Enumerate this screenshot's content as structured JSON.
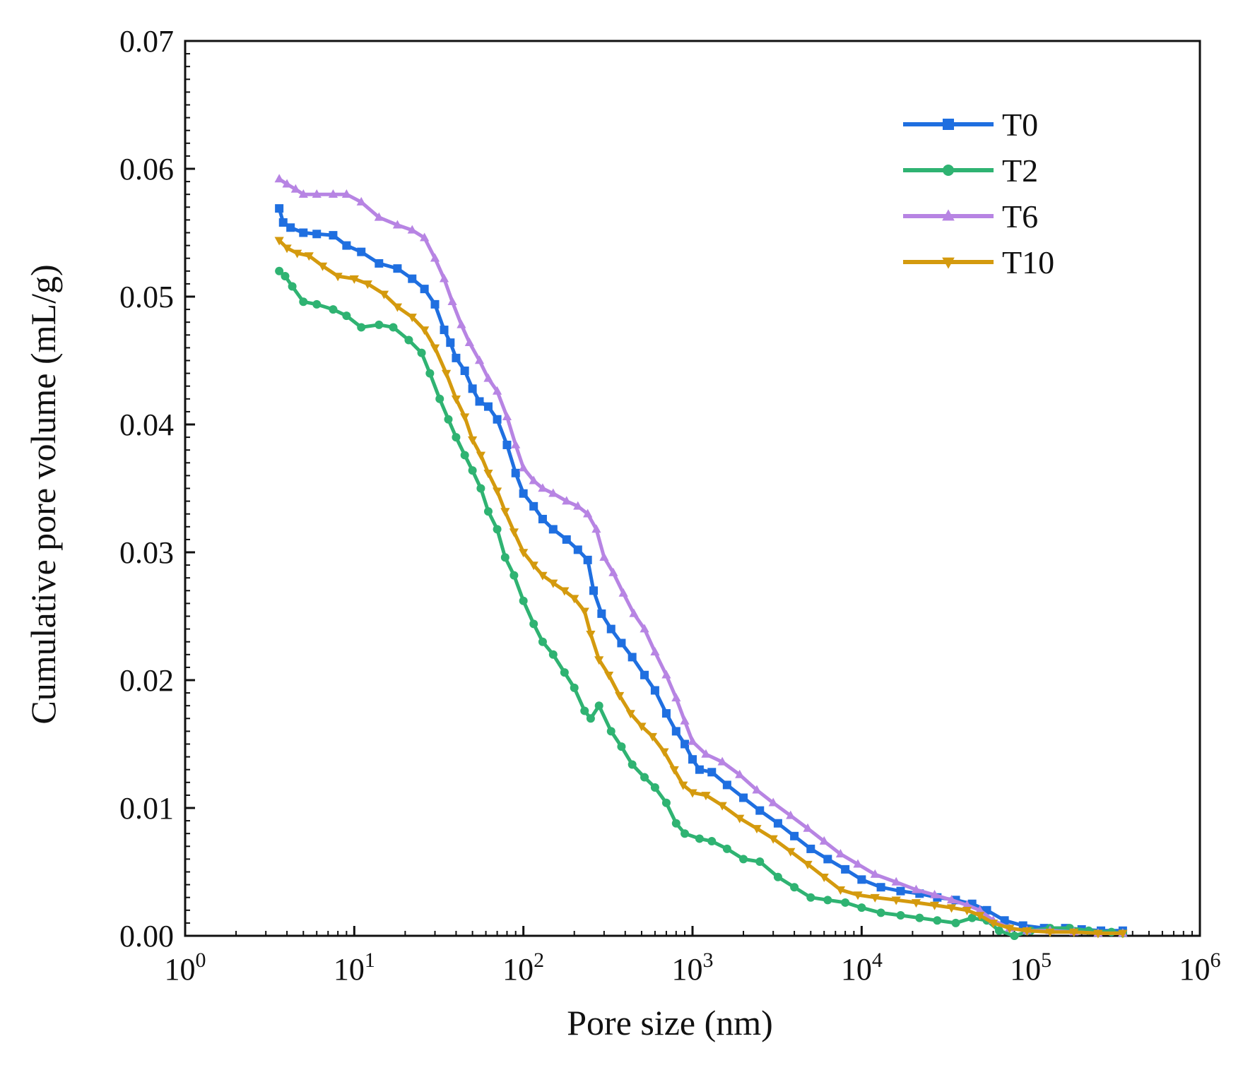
{
  "chart_data": {
    "type": "line",
    "title": "",
    "xlabel": "Pore size (nm)",
    "ylabel": "Cumulative pore volume (mL/g)",
    "xscale": "log",
    "xlim": [
      1,
      1000000
    ],
    "ylim": [
      0,
      0.07
    ],
    "grid": false,
    "legend_position": "top-right",
    "x_ticks": [
      {
        "value": 1,
        "base": "10",
        "exp": "0"
      },
      {
        "value": 10,
        "base": "10",
        "exp": "1"
      },
      {
        "value": 100,
        "base": "10",
        "exp": "2"
      },
      {
        "value": 1000,
        "base": "10",
        "exp": "3"
      },
      {
        "value": 10000,
        "base": "10",
        "exp": "4"
      },
      {
        "value": 100000,
        "base": "10",
        "exp": "5"
      },
      {
        "value": 1000000,
        "base": "10",
        "exp": "6"
      }
    ],
    "y_ticks": [
      {
        "value": 0,
        "label": "0.00"
      },
      {
        "value": 0.01,
        "label": "0.01"
      },
      {
        "value": 0.02,
        "label": "0.02"
      },
      {
        "value": 0.03,
        "label": "0.03"
      },
      {
        "value": 0.04,
        "label": "0.04"
      },
      {
        "value": 0.05,
        "label": "0.05"
      },
      {
        "value": 0.06,
        "label": "0.06"
      },
      {
        "value": 0.07,
        "label": "0.07"
      }
    ],
    "series": [
      {
        "name": "T0",
        "color": "#1f6fe0",
        "marker": "square",
        "points": [
          [
            3.6,
            0.0569
          ],
          [
            3.8,
            0.0558
          ],
          [
            4.2,
            0.0554
          ],
          [
            5,
            0.055
          ],
          [
            6,
            0.0549
          ],
          [
            7.5,
            0.0548
          ],
          [
            9,
            0.054
          ],
          [
            11,
            0.0535
          ],
          [
            14,
            0.0526
          ],
          [
            18,
            0.0522
          ],
          [
            22,
            0.0514
          ],
          [
            26,
            0.0506
          ],
          [
            30,
            0.0494
          ],
          [
            34,
            0.0474
          ],
          [
            37,
            0.0464
          ],
          [
            40,
            0.0452
          ],
          [
            45,
            0.0442
          ],
          [
            50,
            0.0428
          ],
          [
            55,
            0.0418
          ],
          [
            62,
            0.0414
          ],
          [
            70,
            0.0404
          ],
          [
            80,
            0.0384
          ],
          [
            90,
            0.0362
          ],
          [
            100,
            0.0346
          ],
          [
            115,
            0.0336
          ],
          [
            130,
            0.0326
          ],
          [
            150,
            0.0318
          ],
          [
            180,
            0.031
          ],
          [
            210,
            0.0302
          ],
          [
            240,
            0.0294
          ],
          [
            260,
            0.027
          ],
          [
            290,
            0.0252
          ],
          [
            330,
            0.024
          ],
          [
            380,
            0.0229
          ],
          [
            440,
            0.0218
          ],
          [
            520,
            0.0204
          ],
          [
            600,
            0.0192
          ],
          [
            700,
            0.0174
          ],
          [
            800,
            0.016
          ],
          [
            900,
            0.015
          ],
          [
            1000,
            0.0138
          ],
          [
            1100,
            0.013
          ],
          [
            1300,
            0.0128
          ],
          [
            1600,
            0.0118
          ],
          [
            2000,
            0.0108
          ],
          [
            2500,
            0.0098
          ],
          [
            3200,
            0.0088
          ],
          [
            4000,
            0.0078
          ],
          [
            5000,
            0.0068
          ],
          [
            6300,
            0.006
          ],
          [
            8000,
            0.0052
          ],
          [
            10000,
            0.0044
          ],
          [
            13000,
            0.0038
          ],
          [
            17000,
            0.0035
          ],
          [
            22000,
            0.0033
          ],
          [
            28000,
            0.003
          ],
          [
            36000,
            0.0028
          ],
          [
            45000,
            0.0025
          ],
          [
            55000,
            0.002
          ],
          [
            70000,
            0.0012
          ],
          [
            90000,
            0.0008
          ],
          [
            120000,
            0.0006
          ],
          [
            160000,
            0.0006
          ],
          [
            200000,
            0.0005
          ],
          [
            260000,
            0.0004
          ],
          [
            350000,
            0.0004
          ]
        ]
      },
      {
        "name": "T2",
        "color": "#2fb372",
        "marker": "circle",
        "points": [
          [
            3.6,
            0.052
          ],
          [
            3.9,
            0.0516
          ],
          [
            4.3,
            0.0508
          ],
          [
            5,
            0.0496
          ],
          [
            6,
            0.0494
          ],
          [
            7.5,
            0.049
          ],
          [
            9,
            0.0485
          ],
          [
            11,
            0.0476
          ],
          [
            14,
            0.0478
          ],
          [
            17,
            0.0476
          ],
          [
            21,
            0.0466
          ],
          [
            25,
            0.0456
          ],
          [
            28,
            0.044
          ],
          [
            32,
            0.042
          ],
          [
            36,
            0.0404
          ],
          [
            40,
            0.039
          ],
          [
            45,
            0.0376
          ],
          [
            50,
            0.0364
          ],
          [
            56,
            0.035
          ],
          [
            62,
            0.0332
          ],
          [
            70,
            0.0318
          ],
          [
            78,
            0.0296
          ],
          [
            88,
            0.0282
          ],
          [
            100,
            0.0262
          ],
          [
            115,
            0.0244
          ],
          [
            130,
            0.023
          ],
          [
            150,
            0.022
          ],
          [
            175,
            0.0206
          ],
          [
            200,
            0.0194
          ],
          [
            230,
            0.0176
          ],
          [
            250,
            0.017
          ],
          [
            280,
            0.018
          ],
          [
            330,
            0.016
          ],
          [
            380,
            0.0148
          ],
          [
            440,
            0.0134
          ],
          [
            520,
            0.0124
          ],
          [
            600,
            0.0116
          ],
          [
            700,
            0.0104
          ],
          [
            800,
            0.0088
          ],
          [
            900,
            0.008
          ],
          [
            1100,
            0.0076
          ],
          [
            1300,
            0.0074
          ],
          [
            1600,
            0.0068
          ],
          [
            2000,
            0.006
          ],
          [
            2500,
            0.0058
          ],
          [
            3200,
            0.0046
          ],
          [
            4000,
            0.0038
          ],
          [
            5000,
            0.003
          ],
          [
            6300,
            0.0028
          ],
          [
            8000,
            0.0026
          ],
          [
            10000,
            0.0022
          ],
          [
            13000,
            0.0018
          ],
          [
            17000,
            0.0016
          ],
          [
            22000,
            0.0014
          ],
          [
            28000,
            0.0012
          ],
          [
            36000,
            0.001
          ],
          [
            45000,
            0.0014
          ],
          [
            55000,
            0.0012
          ],
          [
            65000,
            0.0004
          ],
          [
            80000,
            0.0
          ],
          [
            100000,
            0.0004
          ],
          [
            130000,
            0.0006
          ],
          [
            170000,
            0.0006
          ],
          [
            220000,
            0.0004
          ],
          [
            300000,
            0.0003
          ],
          [
            350000,
            0.0002
          ]
        ]
      },
      {
        "name": "T6",
        "color": "#b784e3",
        "marker": "triangle-up",
        "points": [
          [
            3.6,
            0.0592
          ],
          [
            4,
            0.0588
          ],
          [
            4.5,
            0.0584
          ],
          [
            5,
            0.058
          ],
          [
            6,
            0.058
          ],
          [
            7.5,
            0.058
          ],
          [
            9,
            0.058
          ],
          [
            11,
            0.0574
          ],
          [
            14,
            0.0562
          ],
          [
            18,
            0.0556
          ],
          [
            22,
            0.0552
          ],
          [
            26,
            0.0546
          ],
          [
            30,
            0.053
          ],
          [
            34,
            0.0514
          ],
          [
            38,
            0.0496
          ],
          [
            43,
            0.0478
          ],
          [
            48,
            0.0464
          ],
          [
            55,
            0.045
          ],
          [
            62,
            0.0436
          ],
          [
            70,
            0.0426
          ],
          [
            80,
            0.0406
          ],
          [
            90,
            0.0384
          ],
          [
            100,
            0.0366
          ],
          [
            115,
            0.0356
          ],
          [
            130,
            0.035
          ],
          [
            150,
            0.0346
          ],
          [
            180,
            0.034
          ],
          [
            210,
            0.0336
          ],
          [
            240,
            0.033
          ],
          [
            270,
            0.0318
          ],
          [
            300,
            0.0296
          ],
          [
            340,
            0.0284
          ],
          [
            390,
            0.0268
          ],
          [
            450,
            0.0252
          ],
          [
            520,
            0.024
          ],
          [
            600,
            0.0222
          ],
          [
            700,
            0.0204
          ],
          [
            800,
            0.0186
          ],
          [
            900,
            0.0168
          ],
          [
            1000,
            0.0152
          ],
          [
            1200,
            0.0142
          ],
          [
            1500,
            0.0136
          ],
          [
            1900,
            0.0126
          ],
          [
            2400,
            0.0114
          ],
          [
            3000,
            0.0104
          ],
          [
            3800,
            0.0094
          ],
          [
            4800,
            0.0084
          ],
          [
            6000,
            0.0074
          ],
          [
            7500,
            0.0064
          ],
          [
            9500,
            0.0056
          ],
          [
            12000,
            0.0048
          ],
          [
            16000,
            0.0042
          ],
          [
            21000,
            0.0036
          ],
          [
            27000,
            0.0032
          ],
          [
            34000,
            0.0028
          ],
          [
            42000,
            0.0024
          ],
          [
            50000,
            0.002
          ],
          [
            60000,
            0.0012
          ],
          [
            75000,
            0.0006
          ],
          [
            95000,
            0.0004
          ],
          [
            130000,
            0.0004
          ],
          [
            180000,
            0.0003
          ],
          [
            250000,
            0.0002
          ],
          [
            350000,
            0.0002
          ]
        ]
      },
      {
        "name": "T10",
        "color": "#d49a0e",
        "marker": "triangle-down",
        "points": [
          [
            3.6,
            0.0544
          ],
          [
            4,
            0.0538
          ],
          [
            4.6,
            0.0534
          ],
          [
            5.4,
            0.0532
          ],
          [
            6.5,
            0.0524
          ],
          [
            8,
            0.0516
          ],
          [
            10,
            0.0514
          ],
          [
            12,
            0.051
          ],
          [
            15,
            0.0502
          ],
          [
            18,
            0.0492
          ],
          [
            22,
            0.0484
          ],
          [
            26,
            0.0474
          ],
          [
            30,
            0.046
          ],
          [
            35,
            0.044
          ],
          [
            40,
            0.042
          ],
          [
            45,
            0.0406
          ],
          [
            50,
            0.0388
          ],
          [
            56,
            0.0376
          ],
          [
            62,
            0.0362
          ],
          [
            70,
            0.0348
          ],
          [
            78,
            0.0332
          ],
          [
            88,
            0.0316
          ],
          [
            100,
            0.03
          ],
          [
            115,
            0.029
          ],
          [
            130,
            0.0282
          ],
          [
            150,
            0.0276
          ],
          [
            175,
            0.027
          ],
          [
            200,
            0.0264
          ],
          [
            230,
            0.0254
          ],
          [
            250,
            0.0236
          ],
          [
            280,
            0.0216
          ],
          [
            320,
            0.0204
          ],
          [
            370,
            0.0188
          ],
          [
            430,
            0.0174
          ],
          [
            500,
            0.0164
          ],
          [
            580,
            0.0156
          ],
          [
            680,
            0.0144
          ],
          [
            780,
            0.013
          ],
          [
            880,
            0.0118
          ],
          [
            1000,
            0.0112
          ],
          [
            1200,
            0.011
          ],
          [
            1500,
            0.0102
          ],
          [
            1900,
            0.0092
          ],
          [
            2400,
            0.0084
          ],
          [
            3000,
            0.0076
          ],
          [
            3800,
            0.0066
          ],
          [
            4800,
            0.0056
          ],
          [
            6000,
            0.0046
          ],
          [
            7500,
            0.0036
          ],
          [
            9500,
            0.0032
          ],
          [
            12000,
            0.003
          ],
          [
            16000,
            0.0028
          ],
          [
            21000,
            0.0026
          ],
          [
            27000,
            0.0024
          ],
          [
            34000,
            0.0022
          ],
          [
            42000,
            0.002
          ],
          [
            50000,
            0.0016
          ],
          [
            60000,
            0.001
          ],
          [
            75000,
            0.0006
          ],
          [
            95000,
            0.0004
          ],
          [
            130000,
            0.0003
          ],
          [
            180000,
            0.0003
          ],
          [
            250000,
            0.0002
          ],
          [
            350000,
            0.0002
          ]
        ]
      }
    ]
  }
}
